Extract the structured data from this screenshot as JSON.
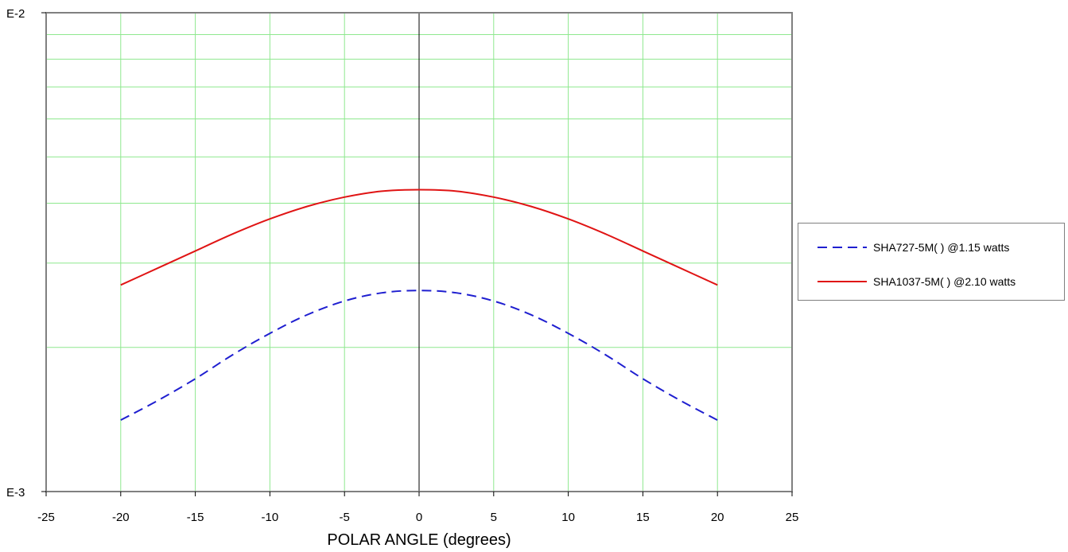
{
  "chart_data": {
    "type": "line",
    "xlabel": "POLAR ANGLE (degrees)",
    "ylabel": "",
    "xlim": [
      -25,
      25
    ],
    "xticks": [
      -25,
      -20,
      -15,
      -10,
      -5,
      0,
      5,
      10,
      15,
      20,
      25
    ],
    "yscale": "log",
    "ylim": [
      0.001,
      0.01
    ],
    "ytick_labels": [
      "E-2",
      "E-3"
    ],
    "grid": true,
    "legend_position": "right",
    "x": [
      -20,
      -17.5,
      -15,
      -12.5,
      -10,
      -7.5,
      -5,
      -2.5,
      0,
      2.5,
      5,
      7.5,
      10,
      12.5,
      15,
      17.5,
      20
    ],
    "series": [
      {
        "name": "SHA727-5M( ) @1.15 watts",
        "color": "#1f1fd0",
        "dash": true,
        "values": [
          0.00141,
          0.00155,
          0.00172,
          0.00193,
          0.00214,
          0.00234,
          0.0025,
          0.0026,
          0.00263,
          0.0026,
          0.0025,
          0.00234,
          0.00214,
          0.00193,
          0.00172,
          0.00155,
          0.00141
        ]
      },
      {
        "name": "SHA1037-5M( ) @2.10 watts",
        "color": "#e01414",
        "dash": false,
        "values": [
          0.0027,
          0.00293,
          0.00318,
          0.00345,
          0.00371,
          0.00394,
          0.00412,
          0.00424,
          0.00427,
          0.00424,
          0.00412,
          0.00394,
          0.00371,
          0.00345,
          0.00318,
          0.00293,
          0.0027
        ]
      }
    ]
  }
}
